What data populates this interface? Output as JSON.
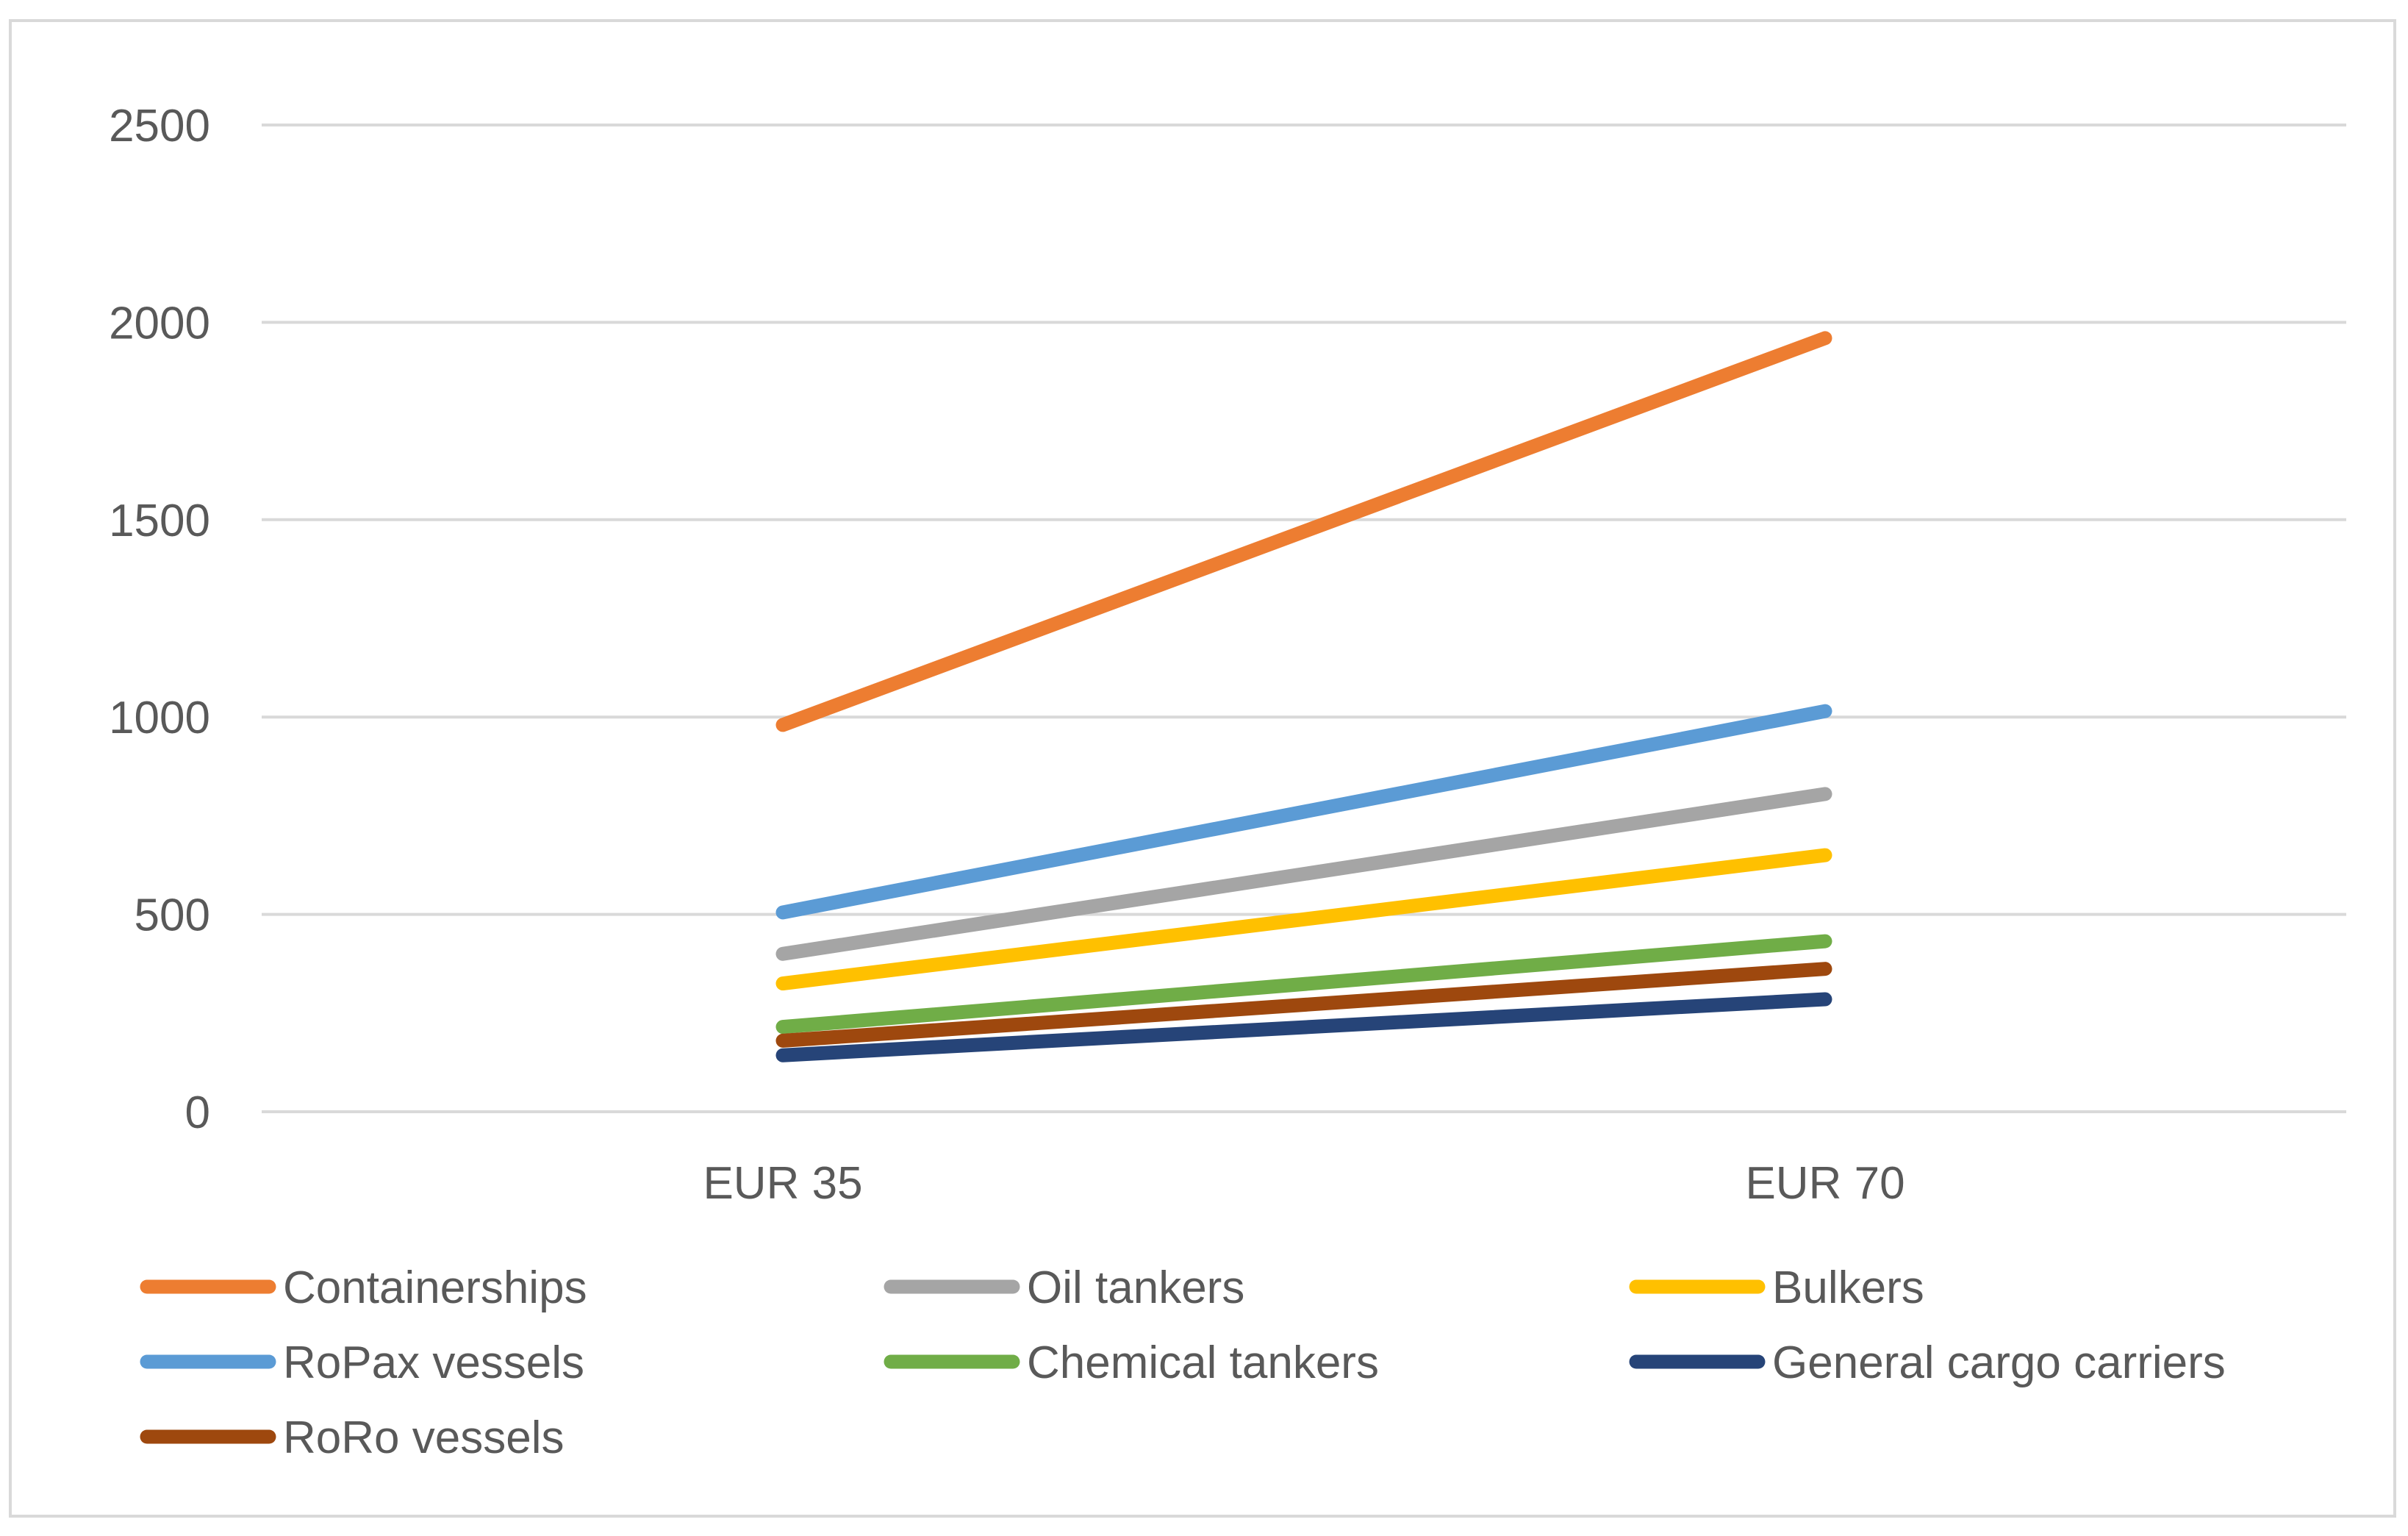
{
  "chart_data": {
    "type": "line",
    "title": "",
    "xlabel": "",
    "ylabel": "",
    "categories": [
      "EUR 35",
      "EUR 70"
    ],
    "ylim": [
      0,
      2500
    ],
    "yticks": [
      0,
      500,
      1000,
      1500,
      2000,
      2500
    ],
    "ytick_labels": [
      "0",
      "500",
      "1000",
      "1500",
      "2000",
      "2500"
    ],
    "grid": true,
    "legend_position": "bottom",
    "series": [
      {
        "name": "Containerships",
        "color": "#ED7D31",
        "values": [
          980,
          1960
        ]
      },
      {
        "name": "Oil tankers",
        "color": "#A5A5A5",
        "values": [
          400,
          805
        ]
      },
      {
        "name": "Bulkers",
        "color": "#FFC000",
        "values": [
          325,
          650
        ]
      },
      {
        "name": "RoPax vessels",
        "color": "#5B9BD5",
        "values": [
          505,
          1015
        ]
      },
      {
        "name": "Chemical tankers",
        "color": "#70AD47",
        "values": [
          215,
          432
        ]
      },
      {
        "name": "General cargo carriers",
        "color": "#264478",
        "values": [
          143,
          285
        ]
      },
      {
        "name": "RoRo vessels",
        "color": "#9E480E",
        "values": [
          180,
          362
        ]
      }
    ]
  }
}
